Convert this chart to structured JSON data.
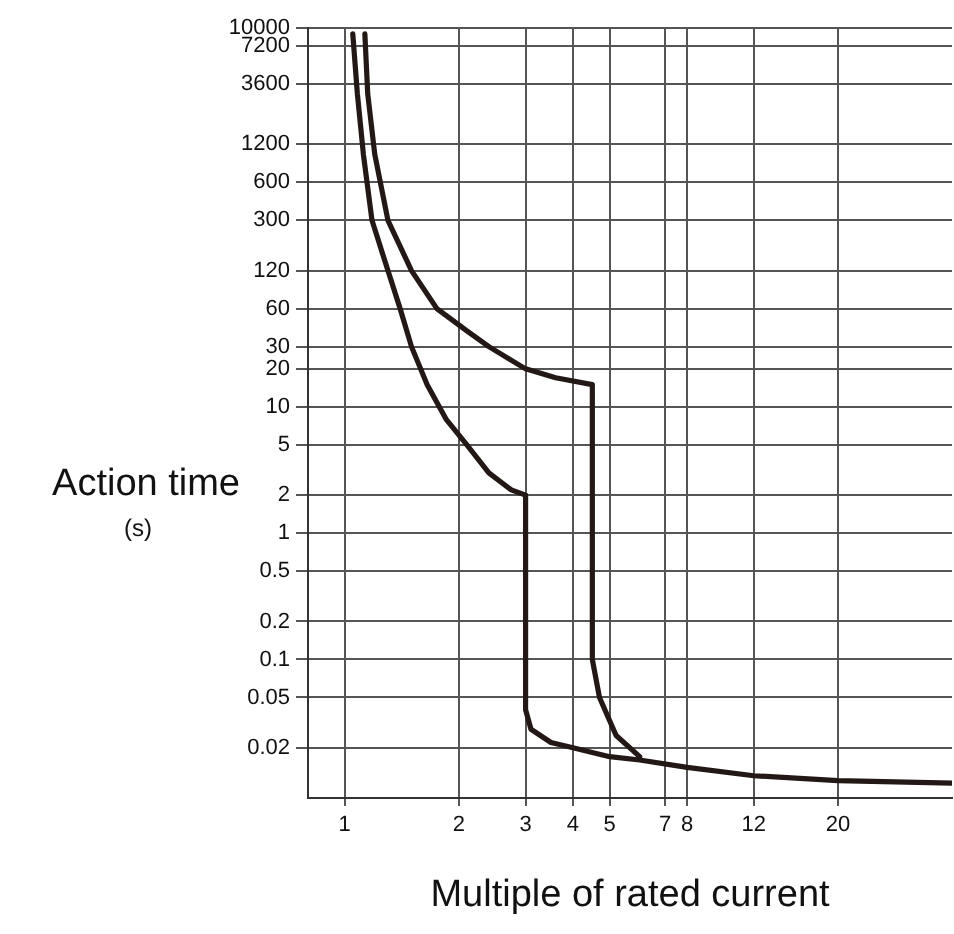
{
  "chart_data": {
    "type": "line",
    "xlabel": "Multiple of rated current",
    "ylabel": "Action time",
    "annotations": [
      "(s)"
    ],
    "log": "xy",
    "xlim": [
      0.8,
      40
    ],
    "xticks": [
      1,
      2,
      3,
      4,
      5,
      7,
      8,
      12,
      20
    ],
    "ylim": [
      0.008,
      10000
    ],
    "yticks": [
      0.02,
      0.05,
      0.1,
      0.2,
      0.5,
      1,
      2,
      5,
      10,
      20,
      30,
      60,
      120,
      300,
      600,
      1200,
      3600,
      7200,
      10000
    ],
    "grid": true,
    "legend": false,
    "marker": "none",
    "line_style": "solid",
    "series": [
      {
        "color": "#231815",
        "x": [
          1.05,
          1.08,
          1.12,
          1.18,
          1.3,
          1.4,
          1.5,
          1.65,
          1.85,
          2.1,
          2.4,
          2.75,
          3,
          3,
          3.1,
          3.5,
          4,
          5,
          6,
          8,
          12,
          20,
          40
        ],
        "values": [
          9000,
          3000,
          1000,
          300,
          120,
          60,
          30,
          15,
          8,
          5,
          3,
          2.2,
          2,
          0.04,
          0.028,
          0.022,
          0.02,
          0.017,
          0.016,
          0.014,
          0.012,
          0.011,
          0.0105
        ]
      },
      {
        "color": "#231815",
        "x": [
          1.13,
          1.15,
          1.2,
          1.3,
          1.5,
          1.75,
          2.1,
          2.4,
          3,
          3.6,
          4.5,
          4.5,
          4.7,
          5.2,
          6
        ],
        "values": [
          9000,
          3000,
          1000,
          300,
          120,
          60,
          40,
          30,
          20,
          17,
          15,
          0.1,
          0.05,
          0.025,
          0.017
        ]
      }
    ]
  }
}
